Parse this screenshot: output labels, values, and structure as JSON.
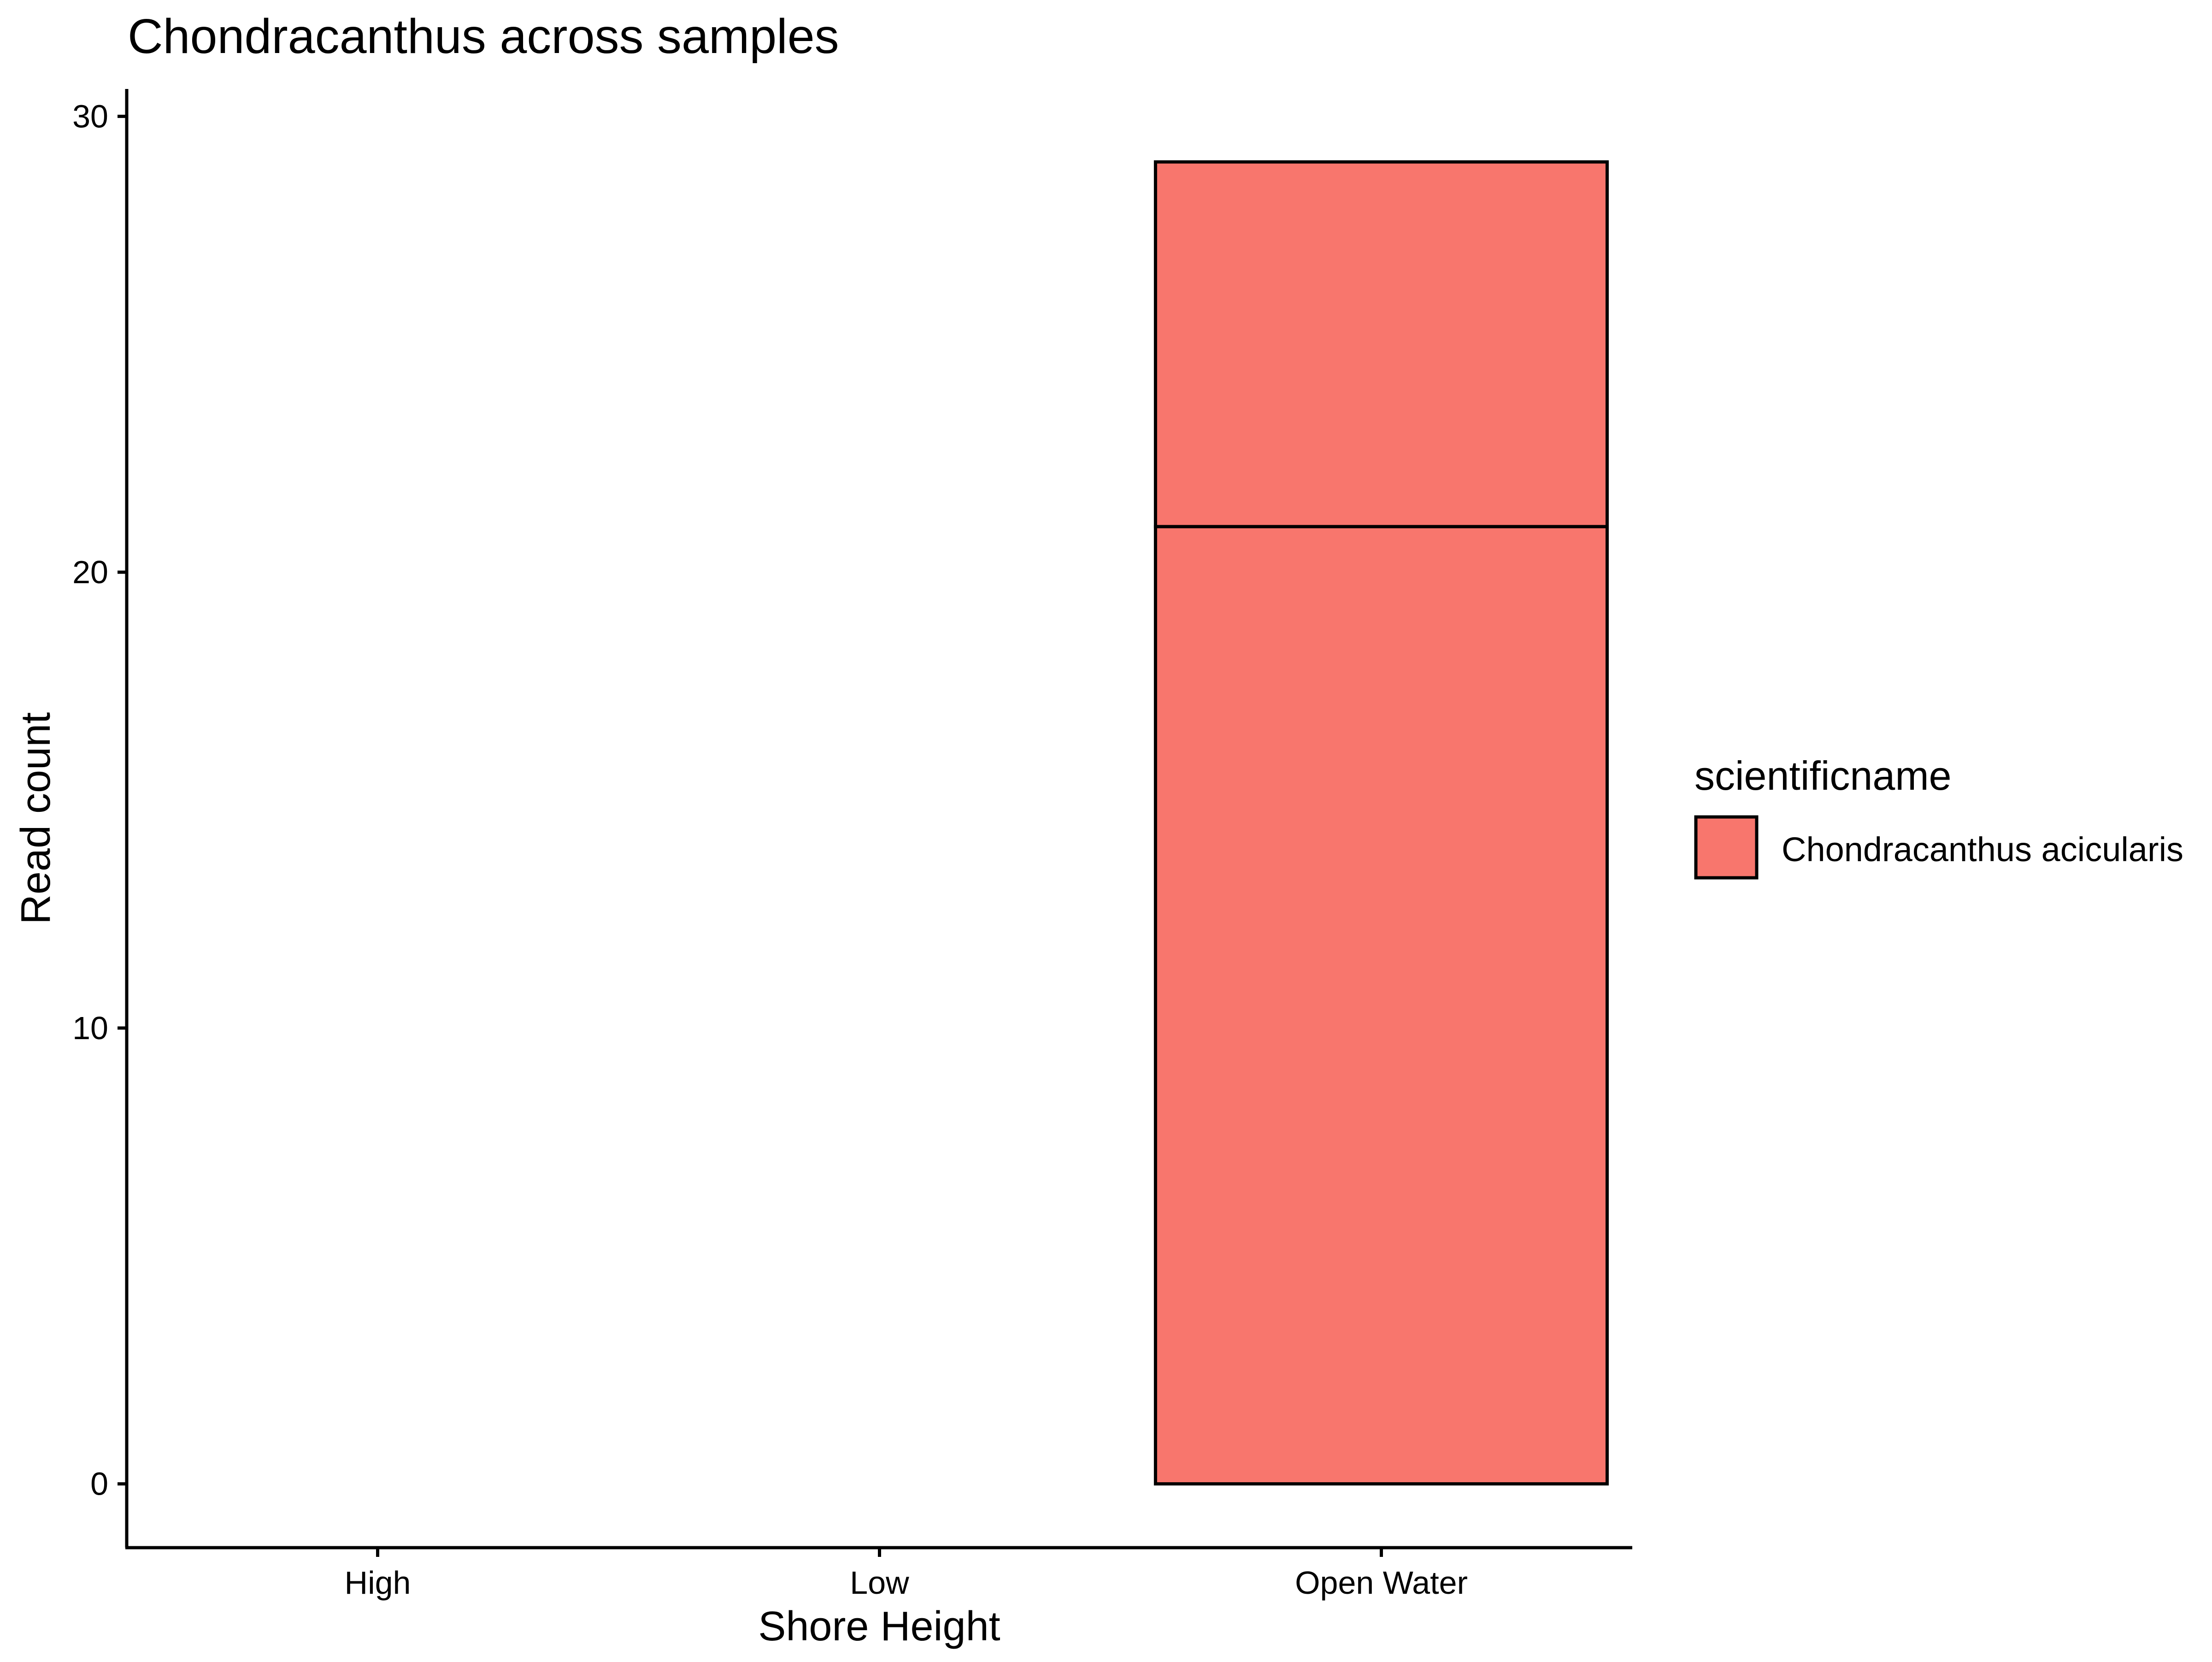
{
  "chart_data": {
    "type": "bar",
    "stacked": true,
    "title": "Chondracanthus across samples",
    "xlabel": "Shore Height",
    "ylabel": "Read count",
    "categories": [
      "High",
      "Low",
      "Open Water"
    ],
    "ylim": [
      -1.4,
      30.6
    ],
    "yticks": [
      0,
      10,
      20,
      30
    ],
    "grid": false,
    "legend": {
      "title": "scientificname",
      "position": "right",
      "entries": [
        {
          "name": "Chondracanthus acicularis",
          "color": "#F8766D"
        }
      ]
    },
    "segments": [
      {
        "category": "High",
        "series": "Chondracanthus acicularis",
        "y0": 0,
        "y1": 0
      },
      {
        "category": "Low",
        "series": "Chondracanthus acicularis",
        "y0": 0,
        "y1": 0
      },
      {
        "category": "Open Water",
        "series": "Chondracanthus acicularis",
        "y0": 0,
        "y1": 21
      },
      {
        "category": "Open Water",
        "series": "Chondracanthus acicularis",
        "y0": 21,
        "y1": 29
      }
    ],
    "colors": {
      "fill": "#F8766D",
      "outline": "#000000"
    }
  }
}
